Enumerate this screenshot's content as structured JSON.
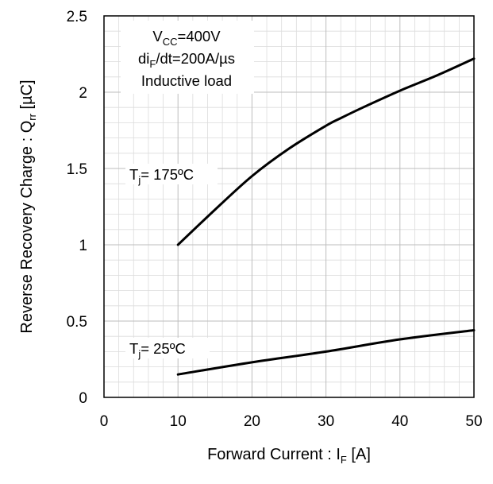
{
  "chart_data": {
    "type": "line",
    "title": "",
    "xlabel": {
      "main": "Forward Current : I",
      "sub": "F",
      "unit": " [A]"
    },
    "ylabel": {
      "main": "Reverse Recovery Charge : Q",
      "sub": "rr",
      "unit": " [µC]"
    },
    "xlim": [
      0,
      50
    ],
    "ylim": [
      0,
      2.5
    ],
    "x_ticks": [
      "0",
      "10",
      "20",
      "30",
      "40",
      "50"
    ],
    "y_ticks": [
      "0",
      "0.5",
      "1",
      "1.5",
      "2",
      "2.5"
    ],
    "grid": true,
    "series": [
      {
        "name": "Tj= 175ºC",
        "x": [
          10,
          15,
          20,
          25,
          30,
          32,
          35,
          40,
          45,
          50
        ],
        "y": [
          1.0,
          1.23,
          1.45,
          1.63,
          1.78,
          1.83,
          1.9,
          2.01,
          2.11,
          2.22
        ]
      },
      {
        "name": "Tj= 25ºC",
        "x": [
          10,
          20,
          30,
          40,
          50
        ],
        "y": [
          0.15,
          0.23,
          0.3,
          0.38,
          0.44
        ]
      }
    ],
    "conditions": {
      "line1": {
        "main": "V",
        "sub": "CC",
        "rest": "=400V"
      },
      "line2": {
        "main": "di",
        "sub": "F",
        "rest": "/dt=200A/µs"
      },
      "line3": "Inductive load"
    },
    "series_labels": [
      {
        "main": "T",
        "sub": "j",
        "rest": "= 175ºC"
      },
      {
        "main": "T",
        "sub": "j",
        "rest": "= 25ºC"
      }
    ],
    "colors": {
      "line": "#000000",
      "grid": "#bdbdbd",
      "grid_minor": "#dcdcdc"
    }
  }
}
